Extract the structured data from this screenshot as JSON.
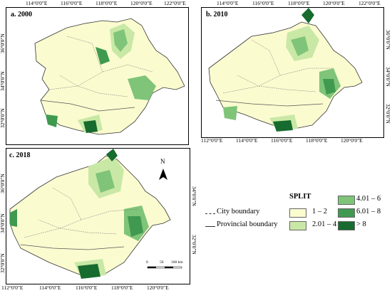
{
  "panels": [
    {
      "label": "a. 2000",
      "top_ticks": [
        "114°0'0\"E",
        "116°0'0\"E",
        "118°0'0\"E",
        "120°0'0\"E",
        "122°0'0\"E"
      ],
      "left_ticks": [
        "36°0'0\"N",
        "34°0'0\"N",
        "32°0'0\"N"
      ]
    },
    {
      "label": "b. 2010",
      "top_ticks": [
        "114°0'0\"E",
        "116°0'0\"E",
        "118°0'0\"E",
        "120°0'0\"E",
        "122°0'0\"E"
      ],
      "bottom_ticks": [
        "112°0'0\"E",
        "114°0'0\"E",
        "116°0'0\"E",
        "118°0'0\"E",
        "120°0'0\"E"
      ],
      "right_ticks": [
        "36°0'0\"N",
        "34°0'0\"N",
        "32°0'0\"N"
      ]
    },
    {
      "label": "c. 2018",
      "bottom_ticks": [
        "112°0'0\"E",
        "114°0'0\"E",
        "116°0'0\"E",
        "118°0'0\"E",
        "120°0'0\"E"
      ],
      "left_ticks": [
        "36°0'0\"N",
        "34°0'0\"N",
        "32°0'0\"N"
      ],
      "right_ticks": [
        "34°0'0\"N",
        "32°0'0\"N"
      ],
      "north": "N",
      "scale": {
        "labels": [
          "0",
          "50",
          "100 km"
        ]
      }
    }
  ],
  "legend": {
    "title": "SPLIT",
    "city_boundary": "City boundary",
    "provincial_boundary": "Provincial boundary",
    "classes": [
      {
        "label": "1 – 2",
        "color": "#fbfbd0"
      },
      {
        "label": "2.01 – 4",
        "color": "#c9e8a6"
      },
      {
        "label": "4.01 – 6",
        "color": "#7fc479"
      },
      {
        "label": "6.01 – 8",
        "color": "#3f9a4f"
      },
      {
        "label": "> 8",
        "color": "#176b2e"
      }
    ]
  }
}
